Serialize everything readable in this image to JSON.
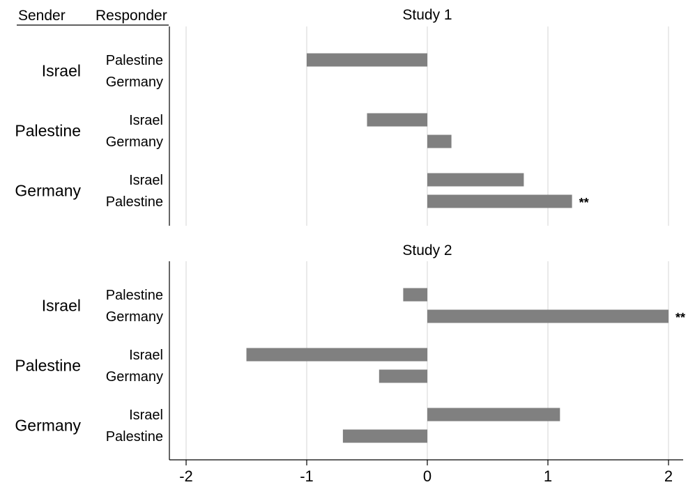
{
  "header": {
    "sender_label": "Sender",
    "responder_label": "Responder"
  },
  "chart_data": [
    {
      "type": "bar",
      "orientation": "horizontal",
      "title": "Study 1",
      "xlim": [
        -2.2,
        2.15
      ],
      "xticks": [
        "-2",
        "-1",
        "0",
        "1",
        "2"
      ],
      "grid": true,
      "groups": [
        {
          "sender": "Israel",
          "rows": [
            {
              "responder": "Palestine",
              "value": -1.0,
              "marker": ""
            },
            {
              "responder": "Germany",
              "value": null,
              "marker": ""
            }
          ]
        },
        {
          "sender": "Palestine",
          "rows": [
            {
              "responder": "Israel",
              "value": -0.5,
              "marker": ""
            },
            {
              "responder": "Germany",
              "value": 0.2,
              "marker": ""
            }
          ]
        },
        {
          "sender": "Germany",
          "rows": [
            {
              "responder": "Israel",
              "value": 0.8,
              "marker": ""
            },
            {
              "responder": "Palestine",
              "value": 1.2,
              "marker": "**"
            }
          ]
        }
      ]
    },
    {
      "type": "bar",
      "orientation": "horizontal",
      "title": "Study 2",
      "xlim": [
        -2.2,
        2.15
      ],
      "xticks": [
        "-2",
        "-1",
        "0",
        "1",
        "2"
      ],
      "grid": true,
      "groups": [
        {
          "sender": "Israel",
          "rows": [
            {
              "responder": "Palestine",
              "value": -0.2,
              "marker": ""
            },
            {
              "responder": "Germany",
              "value": 2.0,
              "marker": "**"
            }
          ]
        },
        {
          "sender": "Palestine",
          "rows": [
            {
              "responder": "Israel",
              "value": -1.5,
              "marker": ""
            },
            {
              "responder": "Germany",
              "value": -0.4,
              "marker": ""
            }
          ]
        },
        {
          "sender": "Germany",
          "rows": [
            {
              "responder": "Israel",
              "value": 1.1,
              "marker": ""
            },
            {
              "responder": "Palestine",
              "value": -0.7,
              "marker": ""
            }
          ]
        }
      ]
    }
  ],
  "colors": {
    "bar": "#808080",
    "grid": "#e3e3e3",
    "axis": "#000000",
    "text": "#000000"
  }
}
